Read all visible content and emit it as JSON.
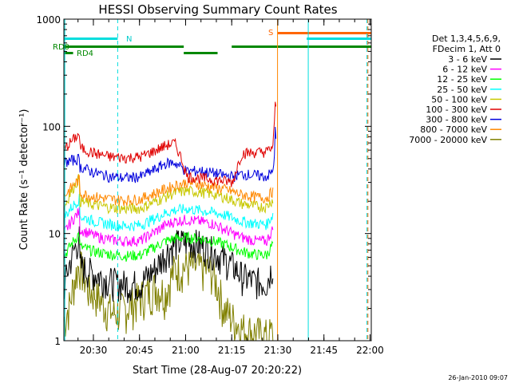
{
  "chart_data": {
    "type": "line",
    "title": "HESSI Observing Summary Count Rates",
    "xlabel": "Start Time (28-Aug-07 20:20:22)",
    "ylabel": "Count Rate (s⁻¹ detector⁻¹)",
    "x_unit": "minutes after 20:20:22",
    "xlim": [
      0,
      100
    ],
    "ylim": [
      1,
      1000
    ],
    "yscale": "log",
    "x_ticks": [
      {
        "value": 9.6,
        "label": "20:30"
      },
      {
        "value": 24.6,
        "label": "20:45"
      },
      {
        "value": 39.6,
        "label": "21:00"
      },
      {
        "value": 54.6,
        "label": "21:15"
      },
      {
        "value": 69.6,
        "label": "21:30"
      },
      {
        "value": 84.6,
        "label": "21:45"
      },
      {
        "value": 99.6,
        "label": "22:00"
      }
    ],
    "y_ticks": [
      {
        "value": 1,
        "label": "1"
      },
      {
        "value": 10,
        "label": "10"
      },
      {
        "value": 100,
        "label": "100"
      },
      {
        "value": 1000,
        "label": "1000"
      }
    ],
    "legend": {
      "placement": "right",
      "header": [
        "Det 1,3,4,5,6,9,",
        "FDecim 1, Att 0"
      ],
      "entries": [
        {
          "label": "3 - 6 keV",
          "color": "#000000"
        },
        {
          "label": "6 - 12 keV",
          "color": "#ff00ff"
        },
        {
          "label": "12 - 25 keV",
          "color": "#00ff00"
        },
        {
          "label": "25 - 50 keV",
          "color": "#00ffff"
        },
        {
          "label": "50 - 100 keV",
          "color": "#c8c800"
        },
        {
          "label": "100 - 300 keV",
          "color": "#e00000"
        },
        {
          "label": "300 - 800 keV",
          "color": "#0000dd"
        },
        {
          "label": "800 - 7000 keV",
          "color": "#ff8800"
        },
        {
          "label": "7000 - 20000 keV",
          "color": "#808000"
        }
      ]
    },
    "series": [
      {
        "name": "3 - 6 keV",
        "color": "#000000",
        "x": [
          0,
          5,
          5.2,
          10,
          15,
          20,
          25,
          30,
          33,
          36,
          40,
          44,
          48,
          52,
          55,
          58,
          62,
          66,
          68
        ],
        "y": [
          3,
          9,
          5,
          4.2,
          3.6,
          3.4,
          3.4,
          4.8,
          6.5,
          8,
          8.5,
          8,
          7,
          5.8,
          5,
          4,
          3.6,
          3.5,
          5
        ]
      },
      {
        "name": "6 - 12 keV",
        "color": "#ff00ff",
        "x": [
          0,
          5,
          5.2,
          10,
          15,
          20,
          25,
          30,
          33,
          36,
          40,
          44,
          48,
          52,
          55,
          58,
          62,
          66,
          68
        ],
        "y": [
          10,
          16,
          11,
          9.5,
          8.8,
          8.5,
          8.6,
          10.5,
          12,
          13,
          13.5,
          13,
          12.5,
          11,
          10,
          9.2,
          8.6,
          8.5,
          11
        ]
      },
      {
        "name": "12 - 25 keV",
        "color": "#00ff00",
        "x": [
          0,
          5,
          5.2,
          10,
          15,
          20,
          25,
          30,
          33,
          36,
          40,
          44,
          48,
          52,
          55,
          58,
          62,
          66,
          68
        ],
        "y": [
          6,
          10,
          7.5,
          6.8,
          6.4,
          6.2,
          6.3,
          7.6,
          8.5,
          9,
          9.2,
          9,
          8.6,
          8,
          7.4,
          6.8,
          6.4,
          6.3,
          8
        ]
      },
      {
        "name": "25 - 50 keV",
        "color": "#00ffff",
        "x": [
          0,
          5,
          5.2,
          10,
          15,
          20,
          25,
          30,
          33,
          36,
          40,
          44,
          48,
          52,
          55,
          58,
          62,
          66,
          68
        ],
        "y": [
          14,
          21,
          14.5,
          13,
          12.2,
          11.8,
          12,
          14,
          15.5,
          16.5,
          17,
          16.5,
          15.8,
          15,
          14,
          13,
          12.4,
          12.2,
          15
        ]
      },
      {
        "name": "50 - 100 keV",
        "color": "#c8c800",
        "x": [
          0,
          5,
          5.2,
          10,
          15,
          20,
          25,
          30,
          33,
          36,
          40,
          44,
          48,
          52,
          55,
          58,
          62,
          66,
          68
        ],
        "y": [
          17,
          33,
          20,
          18.5,
          17.5,
          17,
          17.2,
          20,
          22,
          24,
          25,
          24.5,
          23.5,
          22,
          20.5,
          19,
          18,
          17.8,
          21
        ]
      },
      {
        "name": "100 - 300 keV",
        "color": "#e00000",
        "x": [
          0,
          5,
          5.2,
          10,
          15,
          20,
          25,
          30,
          33,
          36,
          40,
          44,
          48,
          52,
          55,
          58,
          62,
          66,
          68,
          68.6,
          68.8,
          69.2
        ],
        "y": [
          60,
          85,
          63,
          56,
          52,
          51,
          52,
          60,
          66,
          70,
          34,
          33,
          32,
          31,
          30,
          56,
          57,
          58,
          65,
          110,
          200,
          80
        ]
      },
      {
        "name": "300 - 800 keV",
        "color": "#0000dd",
        "x": [
          0,
          5,
          5.2,
          10,
          15,
          20,
          25,
          30,
          33,
          36,
          40,
          44,
          48,
          52,
          55,
          58,
          62,
          66,
          68,
          68.6,
          68.8,
          69.2
        ],
        "y": [
          46,
          50,
          42,
          37,
          34,
          33,
          34,
          40,
          45,
          46,
          38,
          38.5,
          37,
          35,
          34,
          36,
          35,
          34,
          38,
          60,
          100,
          50
        ]
      },
      {
        "name": "800 - 7000 keV",
        "color": "#ff8800",
        "x": [
          0,
          5,
          5.2,
          10,
          15,
          20,
          25,
          30,
          33,
          36,
          40,
          44,
          48,
          52,
          55,
          58,
          62,
          66,
          68
        ],
        "y": [
          22,
          32,
          24,
          22,
          21,
          20.5,
          21,
          24,
          26,
          28,
          30,
          29,
          27.5,
          26,
          24.5,
          23,
          22,
          21.5,
          25
        ]
      },
      {
        "name": "7000 - 20000 keV",
        "color": "#808000",
        "x": [
          0,
          2,
          5,
          8,
          10,
          13,
          16,
          20,
          23,
          26,
          30,
          33,
          36,
          40,
          44,
          48,
          52,
          55,
          58,
          62,
          66,
          68
        ],
        "y": [
          1.5,
          2.2,
          5.2,
          3,
          2.8,
          2.2,
          1.8,
          2,
          2.3,
          2.7,
          3.2,
          2.8,
          4.6,
          5,
          4.8,
          4.5,
          2,
          1.6,
          1.3,
          1.2,
          1.1,
          1.2
        ]
      }
    ],
    "annotations": [
      {
        "text": "RD0",
        "color": "#008800"
      },
      {
        "text": "RD4",
        "color": "#008800"
      },
      {
        "text": "N",
        "color": "#00cccc"
      },
      {
        "text": "S",
        "color": "#ff6600"
      }
    ],
    "status_bars": [
      {
        "name": "RD0",
        "color": "#008800",
        "segments": [
          [
            0,
            39
          ],
          [
            54.6,
            100
          ]
        ]
      },
      {
        "name": "RD4",
        "color": "#008800",
        "segments": [
          [
            0,
            3
          ],
          [
            39,
            50
          ]
        ]
      },
      {
        "name": "N",
        "color": "#00dddd",
        "segments": [
          [
            0,
            17.5
          ],
          [
            79,
            100
          ]
        ]
      },
      {
        "name": "S",
        "color": "#ff6600",
        "segments": [
          [
            69.5,
            100
          ]
        ]
      }
    ],
    "vlines": [
      {
        "x": 0.3,
        "color": "#00dddd",
        "style": "solid"
      },
      {
        "x": 17.5,
        "color": "#00dddd",
        "style": "dashed"
      },
      {
        "x": 69.5,
        "color": "#ff8800",
        "style": "solid"
      },
      {
        "x": 79.5,
        "color": "#00dddd",
        "style": "solid"
      },
      {
        "x": 98.6,
        "color": "#00dddd",
        "style": "dashed"
      },
      {
        "x": 98.9,
        "color": "#ff6600",
        "style": "dashed"
      }
    ],
    "footer_timestamp": "26-Jan-2010 09:07"
  }
}
